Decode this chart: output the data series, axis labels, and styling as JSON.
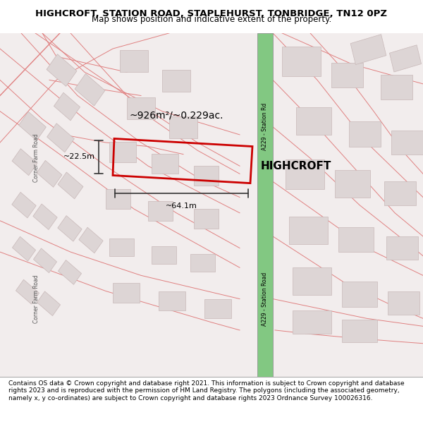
{
  "title": "HIGHCROFT, STATION ROAD, STAPLEHURST, TONBRIDGE, TN12 0PZ",
  "subtitle": "Map shows position and indicative extent of the property.",
  "footer": "Contains OS data © Crown copyright and database right 2021. This information is subject to Crown copyright and database rights 2023 and is reproduced with the permission of HM Land Registry. The polygons (including the associated geometry, namely x, y co-ordinates) are subject to Crown copyright and database rights 2023 Ordnance Survey 100026316.",
  "map_bg": "#f5f0f0",
  "road_green_color": "#7ec87e",
  "road_outline_color": "#aaaaaa",
  "building_fill": "#e8e0e0",
  "building_stroke": "#ccbbbb",
  "plot_outline_color": "#cc0000",
  "plot_fill": "none",
  "dim_line_color": "#333333",
  "area_text": "~926m²/~0.229ac.",
  "width_text": "~64.1m",
  "height_text": "~22.5m",
  "property_name": "HIGHCROFT",
  "road_label_upper": "A229 - Station Rd",
  "road_label_lower": "A229 - Station Road",
  "left_road_label": "Corner Farm Road",
  "map_xlim": [
    0,
    1
  ],
  "map_ylim": [
    0,
    1
  ]
}
